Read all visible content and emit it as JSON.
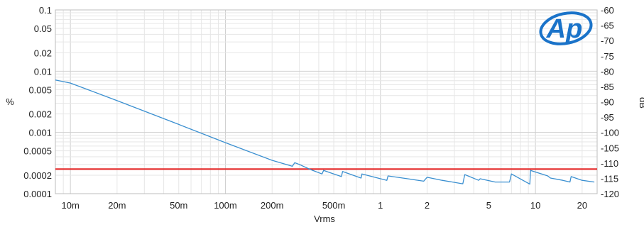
{
  "chart_data": {
    "type": "line",
    "x_scale": "log",
    "y_scale": "log",
    "xlabel": "Vrms",
    "ylabel_left": "%",
    "ylabel_right": "dB",
    "xlim": [
      0.008,
      25
    ],
    "ylim_left": [
      0.0001,
      0.1
    ],
    "ylim_right": [
      -120,
      -60
    ],
    "grid": true,
    "x_ticks": [
      {
        "v": 0.01,
        "label": "10m"
      },
      {
        "v": 0.02,
        "label": "20m"
      },
      {
        "v": 0.05,
        "label": "50m"
      },
      {
        "v": 0.1,
        "label": "100m"
      },
      {
        "v": 0.2,
        "label": "200m"
      },
      {
        "v": 0.5,
        "label": "500m"
      },
      {
        "v": 1,
        "label": "1"
      },
      {
        "v": 2,
        "label": "2"
      },
      {
        "v": 5,
        "label": "5"
      },
      {
        "v": 10,
        "label": "10"
      },
      {
        "v": 20,
        "label": "20"
      }
    ],
    "y_ticks_left": [
      {
        "v": 0.1,
        "label": "0.1"
      },
      {
        "v": 0.05,
        "label": "0.05"
      },
      {
        "v": 0.02,
        "label": "0.02"
      },
      {
        "v": 0.01,
        "label": "0.01"
      },
      {
        "v": 0.005,
        "label": "0.005"
      },
      {
        "v": 0.002,
        "label": "0.002"
      },
      {
        "v": 0.001,
        "label": "0.001"
      },
      {
        "v": 0.0005,
        "label": "0.0005"
      },
      {
        "v": 0.0002,
        "label": "0.0002"
      },
      {
        "v": 0.0001,
        "label": "0.0001"
      }
    ],
    "y_ticks_right": [
      {
        "v": -60,
        "label": "-60"
      },
      {
        "v": -65,
        "label": "-65"
      },
      {
        "v": -70,
        "label": "-70"
      },
      {
        "v": -75,
        "label": "-75"
      },
      {
        "v": -80,
        "label": "-80"
      },
      {
        "v": -85,
        "label": "-85"
      },
      {
        "v": -90,
        "label": "-90"
      },
      {
        "v": -95,
        "label": "-95"
      },
      {
        "v": -100,
        "label": "-100"
      },
      {
        "v": -105,
        "label": "-105"
      },
      {
        "v": -110,
        "label": "-110"
      },
      {
        "v": -115,
        "label": "-115"
      },
      {
        "v": -120,
        "label": "-120"
      }
    ],
    "series": [
      {
        "color": "#3a8fd0",
        "x": [
          0.008,
          0.01,
          0.02,
          0.05,
          0.1,
          0.2,
          0.27,
          0.28,
          0.3,
          0.35,
          0.42,
          0.43,
          0.5,
          0.56,
          0.57,
          0.75,
          0.76,
          1.1,
          1.12,
          1.5,
          1.9,
          2.0,
          2.5,
          3.4,
          3.5,
          4.3,
          4.4,
          5.5,
          6.8,
          7.0,
          9.2,
          9.3,
          12,
          12.5,
          15,
          16.7,
          17,
          20,
          24
        ],
        "y": [
          0.0072,
          0.0064,
          0.0033,
          0.00135,
          0.00068,
          0.00035,
          0.00028,
          0.00032,
          0.0003,
          0.00025,
          0.00021,
          0.00024,
          0.00021,
          0.00019,
          0.00023,
          0.00018,
          0.00021,
          0.000165,
          0.000195,
          0.000175,
          0.00016,
          0.000185,
          0.000165,
          0.000145,
          0.000205,
          0.000165,
          0.000175,
          0.000155,
          0.000155,
          0.00021,
          0.000143,
          0.00024,
          0.000195,
          0.00018,
          0.000165,
          0.000155,
          0.00019,
          0.000165,
          0.000155
        ]
      }
    ],
    "reference_line": {
      "y": 0.000252,
      "color": "#e53030"
    },
    "logo": {
      "text": "Ap",
      "color": "#1a73c9"
    }
  }
}
